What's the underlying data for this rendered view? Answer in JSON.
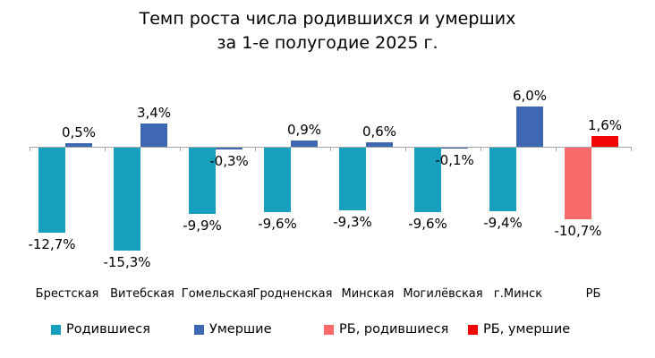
{
  "title": {
    "line1": "Темп роста числа родившихся и умерших",
    "line2": "за 1-е полугодие 2025 г."
  },
  "chart_data": {
    "type": "bar",
    "title": "Темп роста числа родившихся и умерших за 1-е полугодие 2025 г.",
    "categories": [
      "Брестская",
      "Витебская",
      "Гомельская",
      "Гродненская",
      "Минская",
      "Могилёвская",
      "г.Минск",
      "РБ"
    ],
    "series": [
      {
        "name": "Родившиеся",
        "values": [
          -12.7,
          -15.3,
          -9.9,
          -9.6,
          -9.3,
          -9.6,
          -9.4,
          -10.7
        ],
        "labels": [
          "-12,7%",
          "-15,3%",
          "-9,9%",
          "-9,6%",
          "-9,3%",
          "-9,6%",
          "-9,4%",
          "-10,7%"
        ],
        "color": "#16A0BE",
        "rb_color": "#FA6A6A"
      },
      {
        "name": "Умершие",
        "values": [
          0.5,
          3.4,
          -0.3,
          0.9,
          0.6,
          -0.1,
          6.0,
          1.6
        ],
        "labels": [
          "0,5%",
          "3,4%",
          "-0,3%",
          "0,9%",
          "0,6%",
          "-0,1%",
          "6,0%",
          "1,6%"
        ],
        "color": "#3E68B2",
        "rb_color": "#F10606"
      }
    ],
    "special_category": "РБ",
    "value_suffix": "%",
    "decimal_separator": ",",
    "ylim": [
      -16,
      7
    ],
    "grid": false,
    "axis_color": "#A6A6A6",
    "legend_position": "bottom"
  },
  "legend": {
    "items": [
      {
        "label": "Родившиеся",
        "color": "#16A0BE"
      },
      {
        "label": "Умершие",
        "color": "#3E68B2"
      },
      {
        "label": "РБ, родившиеся",
        "color": "#FA6A6A"
      },
      {
        "label": "РБ, умершие",
        "color": "#F10606"
      }
    ]
  }
}
